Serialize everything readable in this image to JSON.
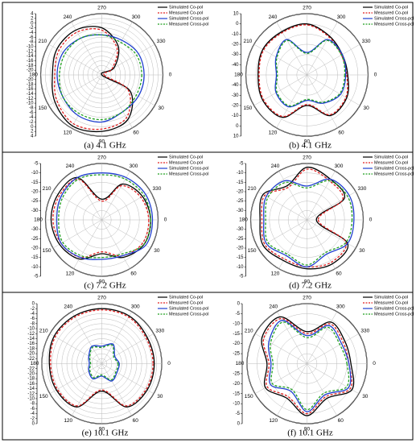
{
  "chart_data": [
    {
      "type": "polar",
      "caption": "(a) 4.1 GHz",
      "theta": [
        0,
        30,
        60,
        90,
        120,
        150,
        180,
        210,
        240,
        270,
        300,
        330
      ],
      "thetaticks": [
        0,
        30,
        60,
        90,
        120,
        150,
        180,
        210,
        240,
        270,
        300,
        330
      ],
      "rlim": [
        -22,
        4
      ],
      "rticks": [
        -20,
        -18,
        -16,
        -14,
        -12,
        -10,
        -8,
        -6,
        -4,
        -2,
        0,
        2,
        4
      ],
      "grid": true,
      "legend": "upper right",
      "series": [
        {
          "name": "Simulated Co-pol",
          "color": "#000000",
          "linestyle": "solid",
          "values": [
            -22,
            -8,
            0,
            2,
            3,
            1,
            -1,
            0,
            0,
            -2,
            -8,
            -16
          ]
        },
        {
          "name": "Measured Co-pol",
          "color": "#e02020",
          "linestyle": "dashed",
          "values": [
            -21,
            -9,
            -1,
            1,
            2,
            0,
            -2,
            -1,
            -1,
            -3,
            -9,
            -17
          ]
        },
        {
          "name": "Simulated Cross-pol",
          "color": "#1f3fd0",
          "linestyle": "solid",
          "values": [
            -4,
            -4,
            -4,
            -2,
            -2,
            -3,
            -3,
            -3,
            -4,
            -5,
            -5,
            -4
          ]
        },
        {
          "name": "Measured Cross-pol",
          "color": "#20a020",
          "linestyle": "dashed",
          "values": [
            -5,
            -5,
            -4,
            -3,
            -3,
            -3,
            -4,
            -4,
            -4,
            -5,
            -6,
            -5
          ]
        }
      ]
    },
    {
      "type": "polar",
      "caption": "(b) 4.1 GHz",
      "theta": [
        0,
        30,
        60,
        90,
        120,
        150,
        180,
        210,
        240,
        270,
        300,
        330
      ],
      "thetaticks": [
        0,
        30,
        60,
        90,
        120,
        150,
        180,
        210,
        240,
        270,
        300,
        330
      ],
      "rlim": [
        -50,
        10
      ],
      "rticks": [
        -40,
        -30,
        -20,
        -10,
        0,
        10
      ],
      "grid": true,
      "legend": "upper right",
      "series": [
        {
          "name": "Simulated Co-pol",
          "color": "#000000",
          "linestyle": "solid",
          "values": [
            -10,
            -5,
            -4,
            -20,
            -2,
            0,
            -2,
            0,
            -1,
            0,
            -6,
            -10
          ]
        },
        {
          "name": "Measured Co-pol",
          "color": "#e02020",
          "linestyle": "dashed",
          "values": [
            -11,
            -6,
            -5,
            -21,
            -3,
            -1,
            -3,
            -1,
            -2,
            -1,
            -7,
            -11
          ]
        },
        {
          "name": "Simulated Cross-pol",
          "color": "#1f3fd0",
          "linestyle": "solid",
          "values": [
            -12,
            -12,
            -18,
            -25,
            -14,
            -15,
            -20,
            -15,
            -10,
            -28,
            -10,
            -10
          ]
        },
        {
          "name": "Measured Cross-pol",
          "color": "#20a020",
          "linestyle": "dashed",
          "values": [
            -13,
            -13,
            -19,
            -26,
            -15,
            -16,
            -21,
            -16,
            -11,
            -29,
            -11,
            -11
          ]
        }
      ]
    },
    {
      "type": "polar",
      "caption": "(c) 7.2 GHz",
      "theta": [
        0,
        30,
        60,
        90,
        120,
        150,
        180,
        210,
        240,
        270,
        300,
        330
      ],
      "thetaticks": [
        0,
        30,
        60,
        90,
        120,
        150,
        180,
        210,
        240,
        270,
        300,
        330
      ],
      "rlim": [
        -35,
        -5
      ],
      "rticks": [
        -30,
        -25,
        -20,
        -15,
        -10,
        -5
      ],
      "grid": true,
      "legend": "upper right",
      "series": [
        {
          "name": "Simulated Co-pol",
          "color": "#000000",
          "linestyle": "solid",
          "values": [
            -9,
            -9,
            -12,
            -17,
            -11,
            -9,
            -8,
            -8,
            -9,
            -24,
            -13,
            -10
          ]
        },
        {
          "name": "Measured Co-pol",
          "color": "#e02020",
          "linestyle": "dashed",
          "values": [
            -10,
            -10,
            -13,
            -18,
            -12,
            -10,
            -9,
            -9,
            -10,
            -25,
            -14,
            -11
          ]
        },
        {
          "name": "Simulated Cross-pol",
          "color": "#1f3fd0",
          "linestyle": "solid",
          "values": [
            -8,
            -8,
            -13,
            -14,
            -12,
            -10,
            -11,
            -10,
            -9,
            -10,
            -9,
            -8
          ]
        },
        {
          "name": "Measured Cross-pol",
          "color": "#20a020",
          "linestyle": "dashed",
          "values": [
            -9,
            -9,
            -14,
            -15,
            -13,
            -11,
            -12,
            -11,
            -10,
            -11,
            -10,
            -9
          ]
        }
      ]
    },
    {
      "type": "polar",
      "caption": "(d) 7.2 GHz",
      "theta": [
        0,
        30,
        60,
        90,
        120,
        150,
        180,
        210,
        240,
        270,
        300,
        330
      ],
      "thetaticks": [
        0,
        30,
        60,
        90,
        120,
        150,
        180,
        210,
        240,
        270,
        300,
        330
      ],
      "rlim": [
        -35,
        -5
      ],
      "rticks": [
        -30,
        -25,
        -20,
        -15,
        -10,
        -5
      ],
      "grid": true,
      "legend": "upper right",
      "series": [
        {
          "name": "Simulated Co-pol",
          "color": "#000000",
          "linestyle": "solid",
          "values": [
            -30,
            -10,
            -8,
            -9,
            -10,
            -8,
            -10,
            -8,
            -14,
            -7,
            -10,
            -12
          ]
        },
        {
          "name": "Measured Co-pol",
          "color": "#e02020",
          "linestyle": "dashed",
          "values": [
            -29,
            -11,
            -9,
            -10,
            -11,
            -9,
            -11,
            -9,
            -15,
            -8,
            -11,
            -13
          ]
        },
        {
          "name": "Simulated Cross-pol",
          "color": "#1f3fd0",
          "linestyle": "solid",
          "values": [
            -10,
            -10,
            -14,
            -10,
            -13,
            -10,
            -12,
            -10,
            -11,
            -17,
            -10,
            -9
          ]
        },
        {
          "name": "Measured Cross-pol",
          "color": "#20a020",
          "linestyle": "dashed",
          "values": [
            -11,
            -11,
            -15,
            -11,
            -14,
            -11,
            -13,
            -11,
            -12,
            -18,
            -11,
            -10
          ]
        }
      ]
    },
    {
      "type": "polar",
      "caption": "(e) 10.1 GHz",
      "theta": [
        0,
        30,
        60,
        90,
        120,
        150,
        180,
        210,
        240,
        270,
        300,
        330
      ],
      "thetaticks": [
        0,
        30,
        60,
        90,
        120,
        150,
        180,
        210,
        240,
        270,
        300,
        330
      ],
      "rlim": [
        -24,
        0
      ],
      "rticks": [
        -22,
        -20,
        -18,
        -16,
        -14,
        -12,
        -10,
        -8,
        -6,
        -4,
        -2,
        0
      ],
      "grid": true,
      "legend": "upper right",
      "series": [
        {
          "name": "Simulated Co-pol",
          "color": "#000000",
          "linestyle": "solid",
          "values": [
            -3,
            -3,
            -4,
            -13,
            -4,
            -3,
            -3,
            -2,
            -2,
            -2,
            -2,
            -3
          ]
        },
        {
          "name": "Measured Co-pol",
          "color": "#e02020",
          "linestyle": "dashed",
          "values": [
            -3.5,
            -3.5,
            -4.5,
            -13.5,
            -4.5,
            -3.5,
            -3.5,
            -2.5,
            -2.5,
            -2.5,
            -2.5,
            -3.5
          ]
        },
        {
          "name": "Simulated Cross-pol",
          "color": "#1f3fd0",
          "linestyle": "solid",
          "values": [
            -17,
            -17,
            -16,
            -19,
            -17,
            -18,
            -19,
            -18,
            -16,
            -17,
            -15,
            -18
          ]
        },
        {
          "name": "Measured Cross-pol",
          "color": "#20a020",
          "linestyle": "dashed",
          "values": [
            -17.5,
            -17.5,
            -16.5,
            -19.5,
            -17.5,
            -18.5,
            -19.5,
            -18.5,
            -16.5,
            -17.5,
            -15.5,
            -18.5
          ]
        }
      ]
    },
    {
      "type": "polar",
      "caption": "(f) 10.1 GHz",
      "theta": [
        0,
        30,
        60,
        90,
        120,
        150,
        180,
        210,
        240,
        270,
        300,
        330
      ],
      "thetaticks": [
        0,
        30,
        60,
        90,
        120,
        150,
        180,
        210,
        240,
        270,
        300,
        330
      ],
      "rlim": [
        -30,
        0
      ],
      "rticks": [
        -25,
        -20,
        -15,
        -10,
        -5,
        0
      ],
      "grid": true,
      "legend": "upper right",
      "series": [
        {
          "name": "Simulated Co-pol",
          "color": "#000000",
          "linestyle": "solid",
          "values": [
            -8,
            -4,
            -10,
            -4,
            -10,
            -6,
            -10,
            -4,
            -3,
            -14,
            -6,
            -8
          ]
        },
        {
          "name": "Measured Co-pol",
          "color": "#e02020",
          "linestyle": "dashed",
          "values": [
            -9,
            -5,
            -11,
            -5,
            -11,
            -7,
            -11,
            -5,
            -4,
            -15,
            -7,
            -9
          ]
        },
        {
          "name": "Simulated Cross-pol",
          "color": "#1f3fd0",
          "linestyle": "solid",
          "values": [
            -9,
            -6,
            -12,
            -6,
            -14,
            -9,
            -12,
            -8,
            -5,
            -16,
            -8,
            -10
          ]
        },
        {
          "name": "Measured Cross-pol",
          "color": "#20a020",
          "linestyle": "dashed",
          "values": [
            -10,
            -7,
            -13,
            -7,
            -15,
            -10,
            -13,
            -9,
            -6,
            -17,
            -9,
            -11
          ]
        }
      ]
    }
  ]
}
